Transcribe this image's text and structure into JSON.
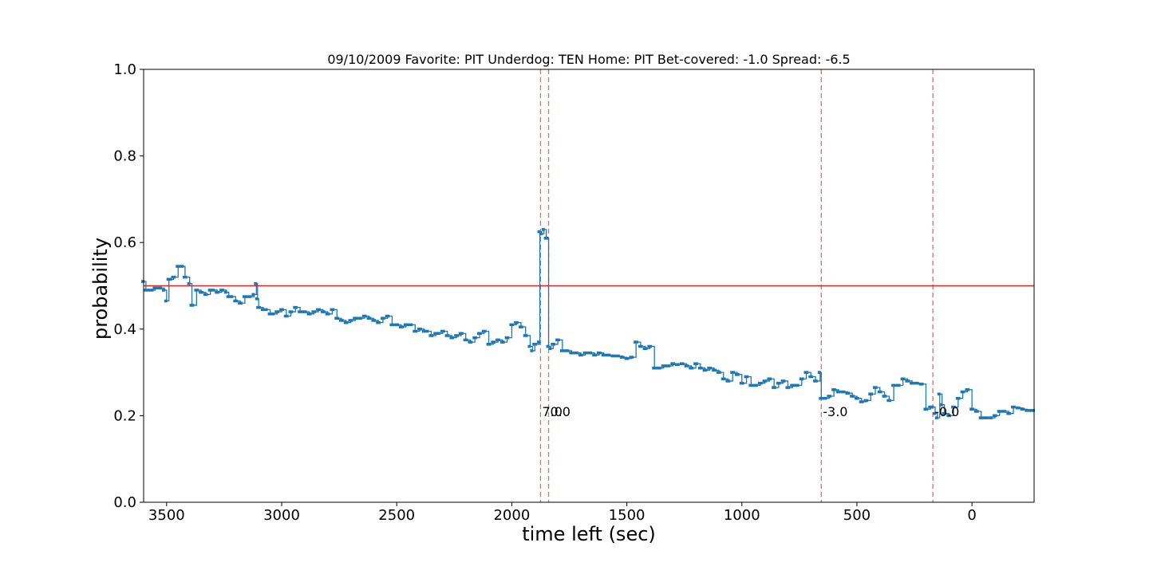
{
  "chart_data": {
    "type": "line",
    "title": "09/10/2009 Favorite: PIT Underdog: TEN Home: PIT Bet-covered: -1.0 Spread: -6.5",
    "xlabel": "time left (sec)",
    "ylabel": "probability",
    "xlim": [
      3600,
      -270
    ],
    "ylim": [
      0.0,
      1.0
    ],
    "x_ticks": [
      3500,
      3000,
      2500,
      2000,
      1500,
      1000,
      500,
      0
    ],
    "x_tick_labels": [
      "3500",
      "3000",
      "2500",
      "2000",
      "1500",
      "1000",
      "500",
      "0"
    ],
    "y_ticks": [
      0.0,
      0.2,
      0.4,
      0.6,
      0.8,
      1.0
    ],
    "y_tick_labels": [
      "0.0",
      "0.2",
      "0.4",
      "0.6",
      "0.8",
      "1.0"
    ],
    "grid": false,
    "colors": {
      "series": "#1f77b4",
      "reference": "#d62728",
      "events": "#e8696a"
    },
    "reference_line": {
      "y": 0.5
    },
    "event_lines": [
      {
        "x": 1875,
        "label": "7.0",
        "label_y": 0.21
      },
      {
        "x": 1840,
        "label": "0.0",
        "label_y": 0.21
      },
      {
        "x": 655,
        "label": "-3.0",
        "label_y": 0.21
      },
      {
        "x": 170,
        "label": "-0.0",
        "label_y": 0.21
      }
    ],
    "series": [
      {
        "x": [
          3600,
          3590,
          3560,
          3550,
          3510,
          3500,
          3490,
          3480,
          3470,
          3450,
          3430,
          3420,
          3400,
          3390,
          3370,
          3350,
          3330,
          3310,
          3280,
          3260,
          3240,
          3230,
          3200,
          3180,
          3160,
          3120,
          3110,
          3105,
          3100,
          3080,
          3050,
          3020,
          3000,
          2980,
          2960,
          2940,
          2920,
          2880,
          2860,
          2840,
          2820,
          2800,
          2780,
          2760,
          2740,
          2720,
          2700,
          2680,
          2660,
          2640,
          2620,
          2600,
          2580,
          2560,
          2540,
          2520,
          2500,
          2480,
          2460,
          2440,
          2420,
          2400,
          2380,
          2350,
          2330,
          2300,
          2280,
          2260,
          2240,
          2220,
          2200,
          2180,
          2160,
          2140,
          2120,
          2100,
          2080,
          2060,
          2040,
          2020,
          2000,
          1980,
          1960,
          1940,
          1920,
          1910,
          1900,
          1880,
          1878,
          1870,
          1860,
          1850,
          1845,
          1840,
          1830,
          1820,
          1800,
          1780,
          1760,
          1740,
          1720,
          1700,
          1680,
          1660,
          1640,
          1620,
          1600,
          1580,
          1560,
          1540,
          1520,
          1500,
          1480,
          1460,
          1440,
          1420,
          1400,
          1380,
          1360,
          1340,
          1320,
          1300,
          1280,
          1260,
          1240,
          1220,
          1200,
          1180,
          1160,
          1140,
          1120,
          1100,
          1080,
          1060,
          1040,
          1020,
          1000,
          980,
          960,
          940,
          920,
          900,
          880,
          860,
          840,
          820,
          800,
          780,
          760,
          740,
          720,
          700,
          680,
          660,
          655,
          640,
          620,
          600,
          580,
          560,
          540,
          520,
          500,
          480,
          460,
          440,
          420,
          400,
          380,
          360,
          340,
          320,
          300,
          280,
          260,
          240,
          220,
          200,
          180,
          170,
          160,
          150,
          140,
          130,
          120,
          100,
          80,
          60,
          40,
          20,
          0,
          -20,
          -40,
          -60,
          -80,
          -100,
          -120,
          -140,
          -160,
          -180,
          -200,
          -220,
          -240,
          -270
        ],
        "y": [
          0.51,
          0.49,
          0.49,
          0.495,
          0.49,
          0.465,
          0.515,
          0.515,
          0.52,
          0.545,
          0.545,
          0.52,
          0.505,
          0.455,
          0.49,
          0.485,
          0.48,
          0.49,
          0.485,
          0.49,
          0.485,
          0.475,
          0.465,
          0.46,
          0.475,
          0.48,
          0.505,
          0.47,
          0.45,
          0.445,
          0.435,
          0.44,
          0.445,
          0.43,
          0.44,
          0.45,
          0.44,
          0.435,
          0.44,
          0.445,
          0.44,
          0.435,
          0.445,
          0.425,
          0.42,
          0.415,
          0.42,
          0.425,
          0.425,
          0.43,
          0.425,
          0.42,
          0.415,
          0.425,
          0.43,
          0.41,
          0.41,
          0.405,
          0.41,
          0.41,
          0.395,
          0.4,
          0.395,
          0.385,
          0.39,
          0.395,
          0.385,
          0.38,
          0.385,
          0.39,
          0.375,
          0.37,
          0.38,
          0.39,
          0.395,
          0.365,
          0.37,
          0.375,
          0.37,
          0.38,
          0.41,
          0.415,
          0.405,
          0.385,
          0.36,
          0.35,
          0.365,
          0.37,
          0.625,
          0.62,
          0.63,
          0.61,
          0.61,
          0.36,
          0.355,
          0.365,
          0.375,
          0.35,
          0.35,
          0.345,
          0.345,
          0.34,
          0.345,
          0.345,
          0.34,
          0.345,
          0.34,
          0.34,
          0.338,
          0.338,
          0.335,
          0.332,
          0.335,
          0.37,
          0.36,
          0.355,
          0.36,
          0.31,
          0.31,
          0.315,
          0.315,
          0.32,
          0.318,
          0.32,
          0.315,
          0.31,
          0.32,
          0.31,
          0.305,
          0.31,
          0.305,
          0.3,
          0.285,
          0.28,
          0.3,
          0.295,
          0.275,
          0.29,
          0.27,
          0.27,
          0.275,
          0.28,
          0.285,
          0.265,
          0.275,
          0.28,
          0.265,
          0.27,
          0.27,
          0.285,
          0.3,
          0.29,
          0.28,
          0.3,
          0.24,
          0.24,
          0.245,
          0.26,
          0.255,
          0.255,
          0.252,
          0.245,
          0.24,
          0.232,
          0.235,
          0.25,
          0.265,
          0.255,
          0.245,
          0.235,
          0.27,
          0.27,
          0.285,
          0.28,
          0.275,
          0.275,
          0.273,
          0.215,
          0.22,
          0.22,
          0.205,
          0.195,
          0.25,
          0.225,
          0.205,
          0.2,
          0.22,
          0.24,
          0.255,
          0.26,
          0.215,
          0.21,
          0.195,
          0.195,
          0.195,
          0.2,
          0.21,
          0.21,
          0.205,
          0.22,
          0.218,
          0.215,
          0.212,
          0.212
        ]
      }
    ]
  }
}
